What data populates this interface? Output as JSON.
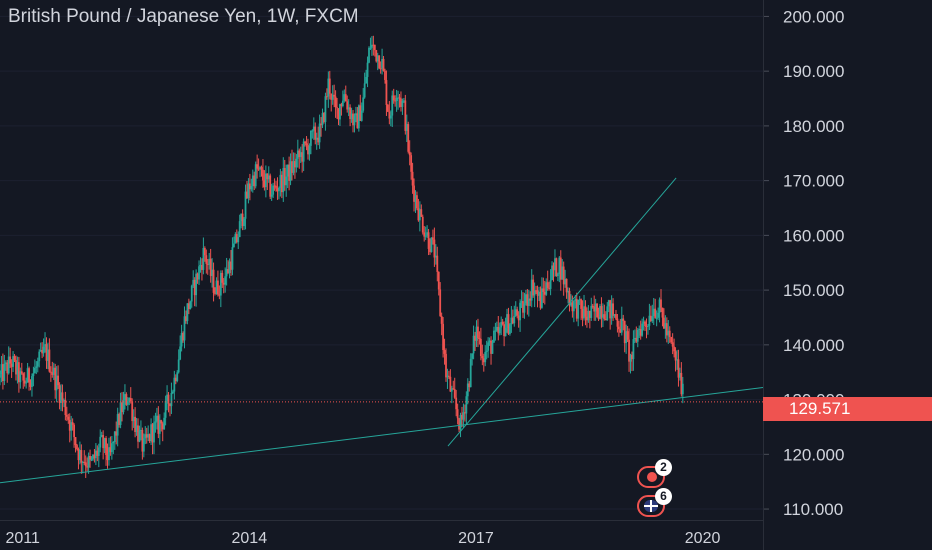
{
  "chart_data": {
    "type": "candlestick",
    "title": "British Pound / Japanese Yen, 1W, FXCM",
    "symbol": "British Pound / Japanese Yen",
    "interval": "1W",
    "exchange": "FXCM",
    "ylim": [
      108,
      203
    ],
    "xlim": [
      2010.7,
      2020.8
    ],
    "y_ticks": [
      "110.000",
      "120.000",
      "130.000",
      "140.000",
      "150.000",
      "160.000",
      "170.000",
      "180.000",
      "190.000",
      "200.000"
    ],
    "x_ticks": [
      "2011",
      "2014",
      "2017",
      "2020"
    ],
    "last_price": "129.571",
    "colors": {
      "up": "#26a69a",
      "down": "#ef5350",
      "background": "#141823",
      "axis_text": "#d1d4dc",
      "grid": "#2a2e39",
      "trendline": "#26a69a"
    },
    "price_path": [
      [
        2010.7,
        134
      ],
      [
        2010.85,
        137
      ],
      [
        2011.0,
        133
      ],
      [
        2011.15,
        135
      ],
      [
        2011.3,
        139
      ],
      [
        2011.45,
        133
      ],
      [
        2011.6,
        127
      ],
      [
        2011.75,
        120
      ],
      [
        2011.9,
        118
      ],
      [
        2012.05,
        122
      ],
      [
        2012.15,
        119
      ],
      [
        2012.3,
        128
      ],
      [
        2012.4,
        131
      ],
      [
        2012.5,
        125
      ],
      [
        2012.6,
        121
      ],
      [
        2012.7,
        124
      ],
      [
        2012.85,
        126
      ],
      [
        2013.0,
        133
      ],
      [
        2013.15,
        145
      ],
      [
        2013.3,
        152
      ],
      [
        2013.4,
        157
      ],
      [
        2013.55,
        150
      ],
      [
        2013.7,
        153
      ],
      [
        2013.85,
        160
      ],
      [
        2014.0,
        169
      ],
      [
        2014.1,
        172
      ],
      [
        2014.3,
        168
      ],
      [
        2014.5,
        171
      ],
      [
        2014.7,
        175
      ],
      [
        2014.85,
        178
      ],
      [
        2014.95,
        179
      ],
      [
        2015.05,
        188
      ],
      [
        2015.15,
        182
      ],
      [
        2015.25,
        186
      ],
      [
        2015.4,
        180
      ],
      [
        2015.5,
        184
      ],
      [
        2015.6,
        195
      ],
      [
        2015.75,
        192
      ],
      [
        2015.85,
        182
      ],
      [
        2015.95,
        187
      ],
      [
        2016.05,
        183
      ],
      [
        2016.15,
        170
      ],
      [
        2016.25,
        164
      ],
      [
        2016.35,
        160
      ],
      [
        2016.45,
        157
      ],
      [
        2016.55,
        143
      ],
      [
        2016.6,
        135
      ],
      [
        2016.7,
        130
      ],
      [
        2016.8,
        125
      ],
      [
        2016.9,
        133
      ],
      [
        2017.0,
        143
      ],
      [
        2017.1,
        138
      ],
      [
        2017.2,
        140
      ],
      [
        2017.35,
        143
      ],
      [
        2017.5,
        145
      ],
      [
        2017.6,
        146
      ],
      [
        2017.75,
        151
      ],
      [
        2017.85,
        148
      ],
      [
        2018.0,
        153
      ],
      [
        2018.1,
        155
      ],
      [
        2018.25,
        148
      ],
      [
        2018.4,
        146
      ],
      [
        2018.5,
        145
      ],
      [
        2018.65,
        147
      ],
      [
        2018.8,
        146
      ],
      [
        2018.95,
        143
      ],
      [
        2019.05,
        137
      ],
      [
        2019.15,
        143
      ],
      [
        2019.25,
        144
      ],
      [
        2019.35,
        147
      ],
      [
        2019.45,
        146
      ],
      [
        2019.55,
        141
      ],
      [
        2019.65,
        137
      ],
      [
        2019.75,
        130
      ]
    ],
    "trendlines": [
      {
        "from": [
          2010.7,
          114.8
        ],
        "to": [
          2020.8,
          132.2
        ]
      },
      {
        "from": [
          2016.63,
          121.5
        ],
        "to": [
          2019.65,
          170.5
        ]
      }
    ],
    "events": [
      {
        "type": "japan-flag",
        "count": "2"
      },
      {
        "type": "uk-flag",
        "count": "6"
      }
    ]
  }
}
